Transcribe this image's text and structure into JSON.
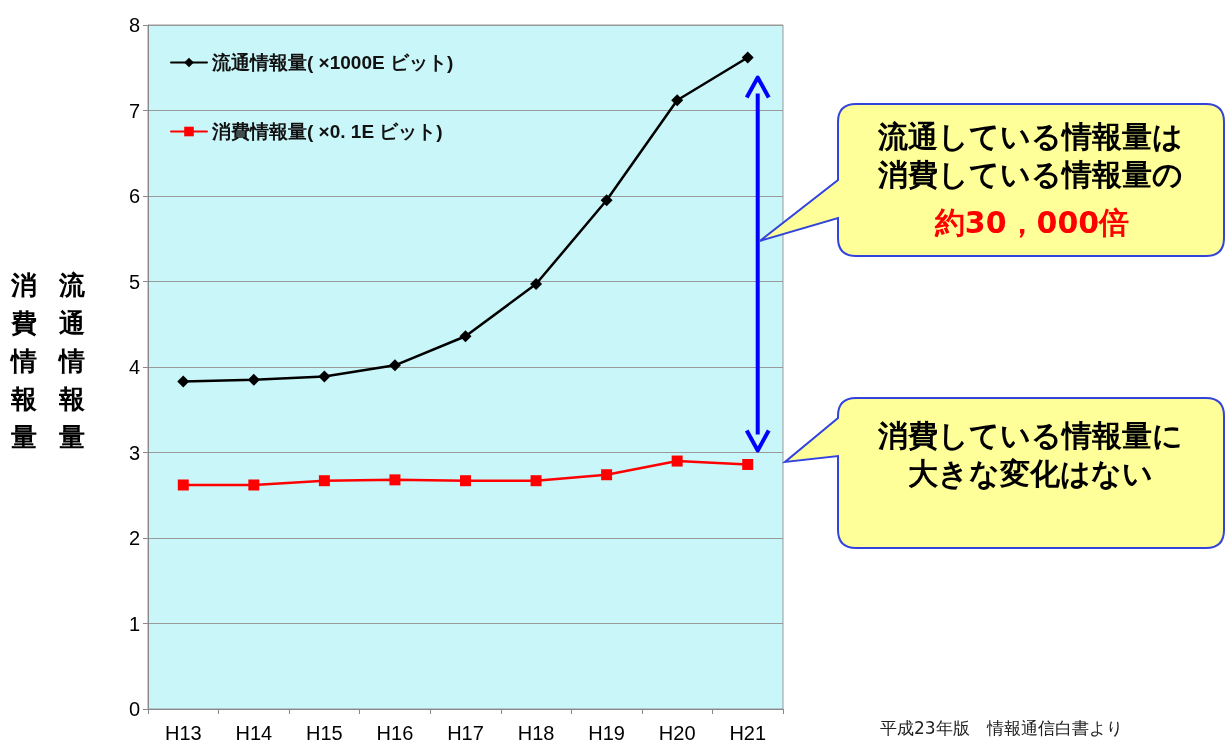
{
  "chart_data": {
    "type": "line",
    "ylabel": "流通情報量消費情報量",
    "categories": [
      "H13",
      "H14",
      "H15",
      "H16",
      "H17",
      "H18",
      "H19",
      "H20",
      "H21"
    ],
    "series": [
      {
        "name": "流通情報量( ×1000E ビット)",
        "color": "#000000",
        "marker": "diamond",
        "values": [
          3.83,
          3.85,
          3.89,
          4.02,
          4.36,
          4.97,
          5.95,
          7.12,
          7.62
        ]
      },
      {
        "name": "消費情報量( ×0. 1E ビット)",
        "color": "#ff0000",
        "marker": "square",
        "values": [
          2.62,
          2.62,
          2.67,
          2.68,
          2.67,
          2.67,
          2.74,
          2.9,
          2.86
        ]
      }
    ],
    "ylim": [
      0,
      8
    ],
    "yticks": [
      0,
      1,
      2,
      3,
      4,
      5,
      6,
      7,
      8
    ],
    "grid": "y",
    "legend": "top left",
    "line_style": "solid",
    "annotations": [
      "流通している情報量は消費している情報量の",
      "約30，000倍",
      "消費している情報量に大きな変化はない",
      "平成23年版　情報通信白書より"
    ]
  }
}
